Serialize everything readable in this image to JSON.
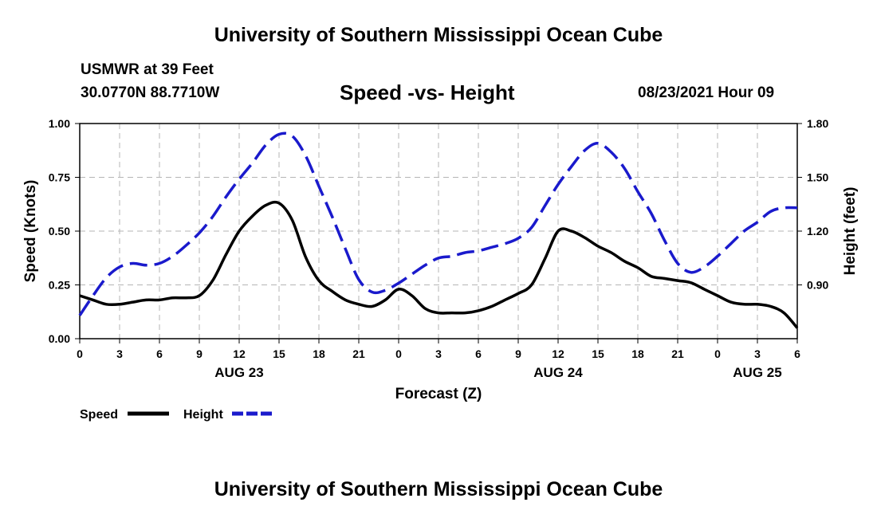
{
  "header": {
    "title": "University of Southern Mississippi Ocean Cube",
    "station": "USMWR at 39 Feet",
    "coords": "30.0770N  88.7710W",
    "datetime": "08/23/2021 Hour 09"
  },
  "footer": {
    "title": "University of Southern Mississippi Ocean Cube"
  },
  "chart_data": {
    "type": "line",
    "title": "Speed -vs- Height",
    "xlabel": "Forecast (Z)",
    "ylabel_left": "Speed (Knots)",
    "ylabel_right": "Height (feet)",
    "x_hours": [
      0,
      1,
      2,
      3,
      4,
      5,
      6,
      7,
      8,
      9,
      10,
      11,
      12,
      13,
      14,
      15,
      16,
      17,
      18,
      19,
      20,
      21,
      22,
      23,
      24,
      25,
      26,
      27,
      28,
      29,
      30,
      31,
      32,
      33,
      34,
      35,
      36,
      37,
      38,
      39,
      40,
      41,
      42,
      43,
      44,
      45,
      46,
      47,
      48,
      49,
      50,
      51,
      52,
      53,
      54
    ],
    "x_tick_hours": [
      0,
      3,
      6,
      9,
      12,
      15,
      18,
      21,
      24,
      27,
      30,
      33,
      36,
      39,
      42,
      45,
      48,
      51,
      54
    ],
    "x_tick_labels": [
      "0",
      "3",
      "6",
      "9",
      "12",
      "15",
      "18",
      "21",
      "0",
      "3",
      "6",
      "9",
      "12",
      "15",
      "18",
      "21",
      "0",
      "3",
      "6"
    ],
    "day_labels": [
      {
        "hour": 12,
        "label": "AUG 23"
      },
      {
        "hour": 36,
        "label": "AUG 24"
      },
      {
        "hour": 51,
        "label": "AUG 25"
      }
    ],
    "xlim": [
      0,
      54
    ],
    "left_axis": {
      "ylim": [
        0,
        1.0
      ],
      "ticks": [
        0.0,
        0.25,
        0.5,
        0.75,
        1.0
      ],
      "tick_labels": [
        "0.00",
        "0.25",
        "0.50",
        "0.75",
        "1.00"
      ]
    },
    "right_axis": {
      "ylim": [
        0.6,
        1.8
      ],
      "ticks": [
        0.9,
        1.2,
        1.5,
        1.8
      ],
      "tick_labels": [
        "0.90",
        "1.20",
        "1.50",
        "1.80"
      ]
    },
    "grid": true,
    "legend_position": "bottom-left",
    "series": [
      {
        "name": "Speed",
        "axis": "left",
        "color": "#000000",
        "dashed": false,
        "values": [
          0.2,
          0.18,
          0.16,
          0.16,
          0.17,
          0.18,
          0.18,
          0.19,
          0.19,
          0.2,
          0.27,
          0.39,
          0.5,
          0.57,
          0.62,
          0.63,
          0.55,
          0.38,
          0.27,
          0.22,
          0.18,
          0.16,
          0.15,
          0.18,
          0.23,
          0.2,
          0.14,
          0.12,
          0.12,
          0.12,
          0.13,
          0.15,
          0.18,
          0.21,
          0.25,
          0.37,
          0.5,
          0.5,
          0.47,
          0.43,
          0.4,
          0.36,
          0.33,
          0.29,
          0.28,
          0.27,
          0.26,
          0.23,
          0.2,
          0.17,
          0.16,
          0.16,
          0.15,
          0.12,
          0.05
        ]
      },
      {
        "name": "Height",
        "axis": "right",
        "color": "#1a1acc",
        "dashed": true,
        "values": [
          0.73,
          0.84,
          0.94,
          1.0,
          1.02,
          1.01,
          1.02,
          1.06,
          1.12,
          1.19,
          1.28,
          1.39,
          1.49,
          1.58,
          1.68,
          1.74,
          1.73,
          1.62,
          1.45,
          1.28,
          1.1,
          0.93,
          0.86,
          0.87,
          0.91,
          0.96,
          1.01,
          1.05,
          1.06,
          1.08,
          1.09,
          1.11,
          1.13,
          1.16,
          1.22,
          1.34,
          1.46,
          1.56,
          1.65,
          1.69,
          1.64,
          1.55,
          1.42,
          1.3,
          1.15,
          1.02,
          0.97,
          1.0,
          1.06,
          1.13,
          1.2,
          1.25,
          1.31,
          1.33,
          1.33
        ]
      }
    ]
  }
}
